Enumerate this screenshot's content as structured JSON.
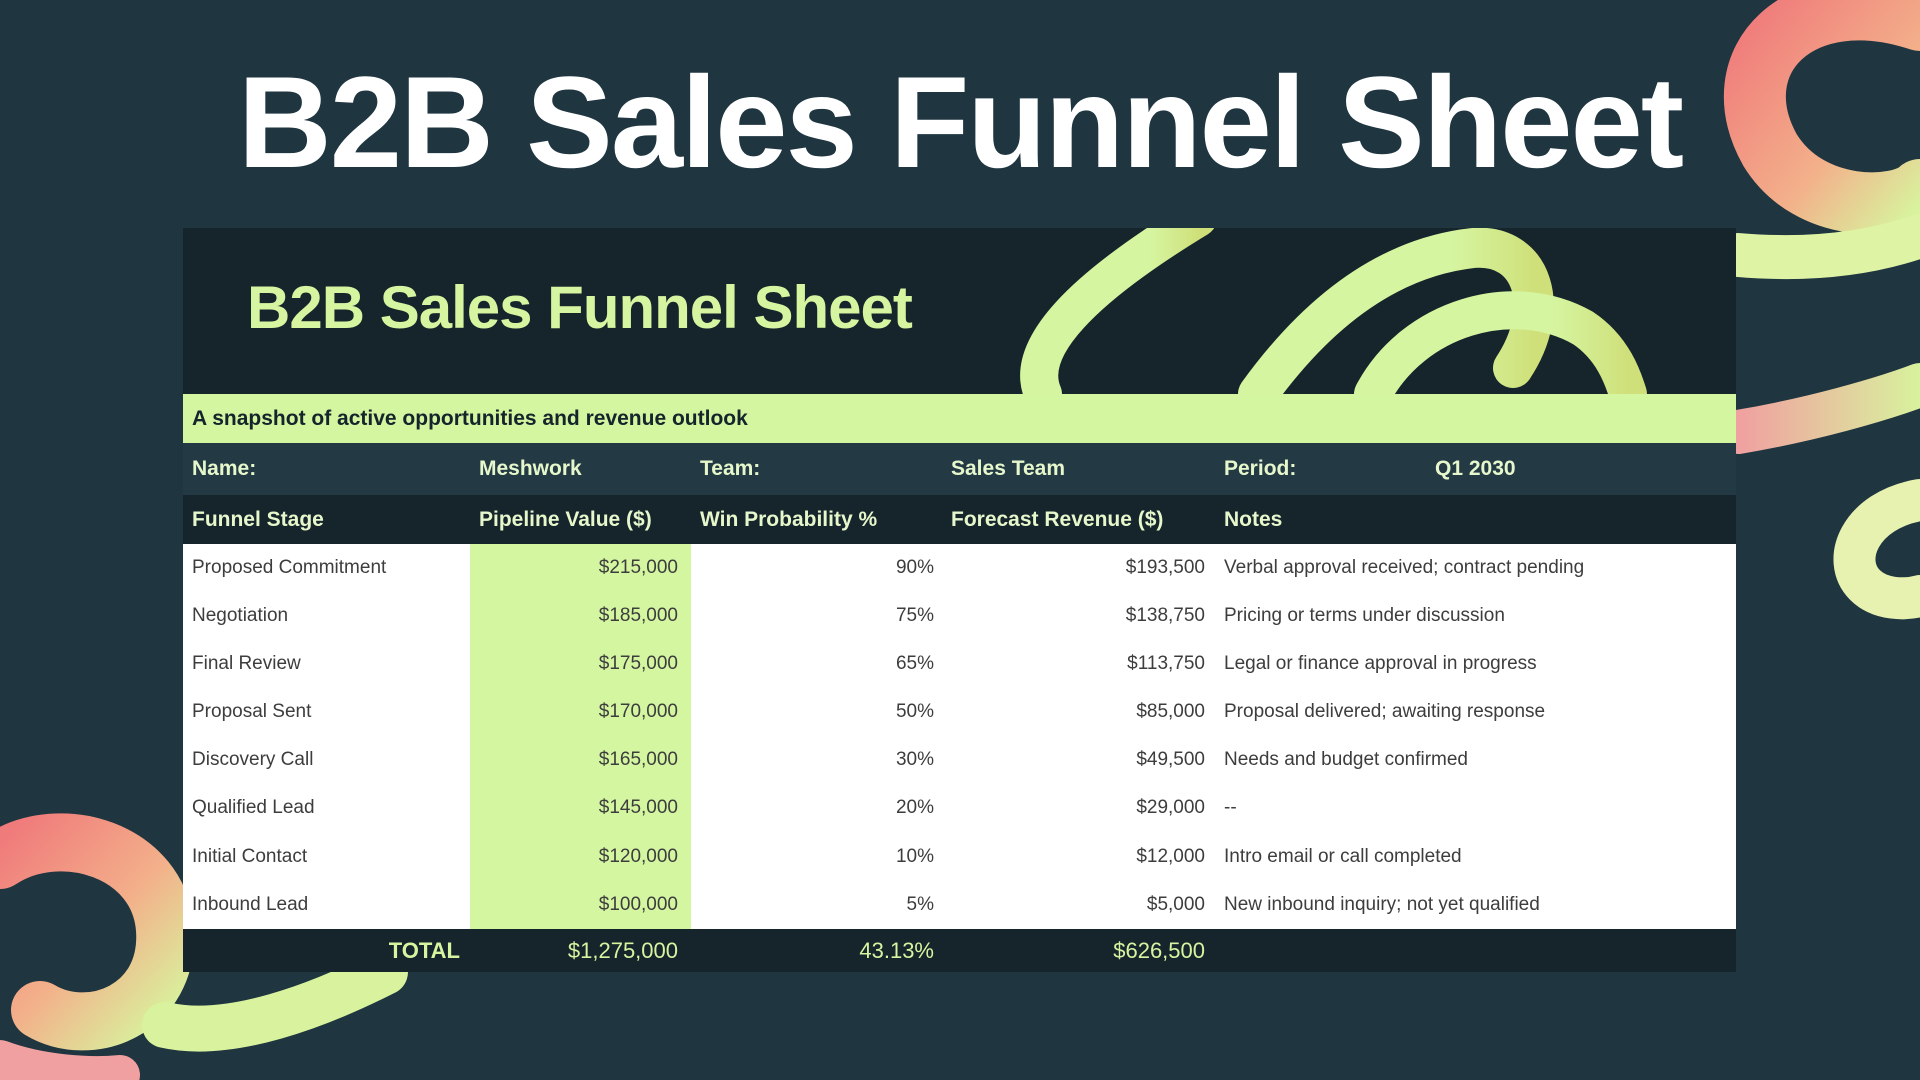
{
  "page": {
    "title": "B2B Sales Funnel Sheet"
  },
  "sheet": {
    "title": "B2B Sales Funnel Sheet",
    "subtitle": "A snapshot of active opportunities and revenue outlook",
    "meta": {
      "name_label": "Name:",
      "name_value": "Meshwork",
      "team_label": "Team:",
      "team_value": "Sales Team",
      "period_label": "Period:",
      "period_value": "Q1 2030"
    },
    "columns": [
      "Funnel Stage",
      "Pipeline Value ($)",
      "Win Probability %",
      "Forecast Revenue ($)",
      "Notes"
    ],
    "rows": [
      {
        "stage": "Proposed Commitment",
        "value": "$215,000",
        "probability": "90%",
        "revenue": "$193,500",
        "notes": "Verbal approval received; contract pending"
      },
      {
        "stage": "Negotiation",
        "value": "$185,000",
        "probability": "75%",
        "revenue": "$138,750",
        "notes": "Pricing or terms under discussion"
      },
      {
        "stage": "Final Review",
        "value": "$175,000",
        "probability": "65%",
        "revenue": "$113,750",
        "notes": "Legal or finance approval in progress"
      },
      {
        "stage": "Proposal Sent",
        "value": "$170,000",
        "probability": "50%",
        "revenue": "$85,000",
        "notes": "Proposal delivered; awaiting response"
      },
      {
        "stage": "Discovery Call",
        "value": "$165,000",
        "probability": "30%",
        "revenue": "$49,500",
        "notes": "Needs and budget confirmed"
      },
      {
        "stage": "Qualified Lead",
        "value": "$145,000",
        "probability": "20%",
        "revenue": "$29,000",
        "notes": "--"
      },
      {
        "stage": "Initial Contact",
        "value": "$120,000",
        "probability": "10%",
        "revenue": "$12,000",
        "notes": "Intro email or call completed"
      },
      {
        "stage": "Inbound Lead",
        "value": "$100,000",
        "probability": "5%",
        "revenue": "$5,000",
        "notes": "New inbound inquiry; not yet qualified"
      }
    ],
    "total": {
      "label": "TOTAL",
      "value": "$1,275,000",
      "probability": "43.13%",
      "revenue": "$626,500"
    }
  },
  "colors": {
    "background": "#1f3540",
    "sheet_dark": "#16242b",
    "accent_green": "#d4f6a1",
    "ribbon_pink": "#f07b7b"
  }
}
